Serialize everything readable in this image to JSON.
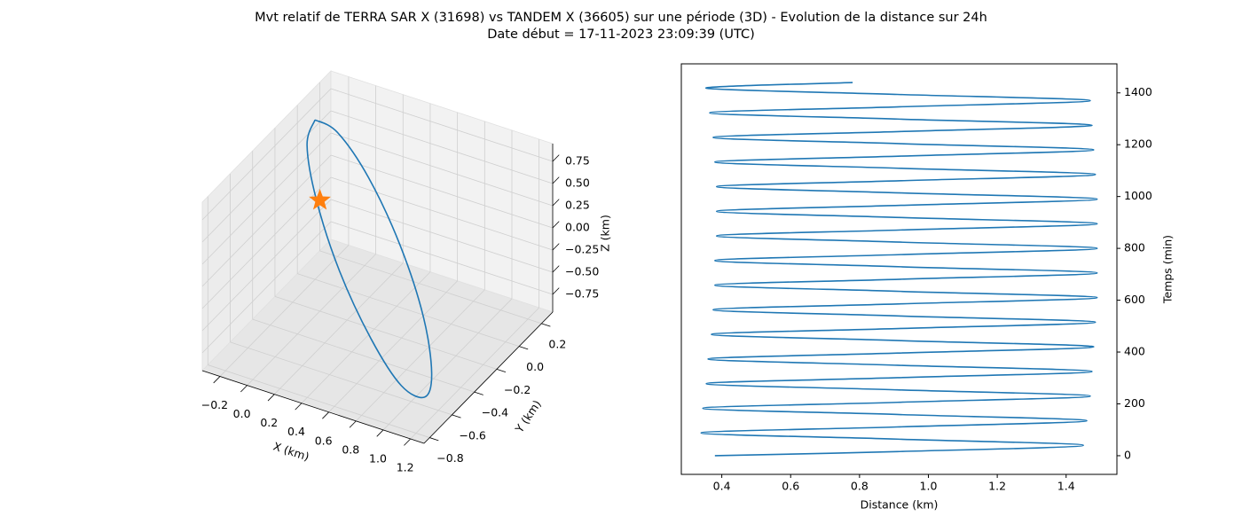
{
  "title": "Mvt relatif de TERRA SAR X (31698) vs TANDEM X (36605) sur une période (3D) - Evolution de la distance sur 24h",
  "subtitle": "Date début = 17-11-2023 23:09:39 (UTC)",
  "chart_data": [
    {
      "type": "line3d",
      "xlabel": "X (km)",
      "ylabel": "Y (km)",
      "zlabel": "Z (km)",
      "xlim": [
        -0.33,
        1.3
      ],
      "ylim": [
        -0.85,
        0.3
      ],
      "zlim": [
        -0.95,
        0.95
      ],
      "grid": true,
      "xticks": [
        {
          "value": -0.2,
          "label": "−0.2"
        },
        {
          "value": 0,
          "label": "0.0"
        },
        0.2,
        0.4,
        0.6,
        0.8,
        {
          "value": 1,
          "label": "1.0"
        },
        1.2
      ],
      "yticks": [
        {
          "value": -0.8,
          "label": "−0.8"
        },
        {
          "value": -0.6,
          "label": "−0.6"
        },
        {
          "value": -0.4,
          "label": "−0.4"
        },
        {
          "value": -0.2,
          "label": "−0.2"
        },
        {
          "value": 0,
          "label": "0.0"
        },
        0.2
      ],
      "zticks": [
        {
          "value": -0.75,
          "label": "−0.75"
        },
        {
          "value": -0.5,
          "label": "−0.50"
        },
        {
          "value": -0.25,
          "label": "−0.25"
        },
        {
          "value": 0,
          "label": "0.00"
        },
        0.25,
        {
          "value": 0.5,
          "label": "0.50"
        },
        0.75
      ],
      "series": [
        {
          "type": "line",
          "color": "#1f77b4",
          "x": [
            -0.2,
            -0.06,
            0.21,
            0.55,
            0.86,
            1.06,
            1.1,
            0.96,
            0.69,
            0.35,
            0.04,
            -0.16,
            -0.2
          ],
          "y": [
            0,
            0.03,
            -0.02,
            -0.15,
            -0.32,
            -0.49,
            -0.6,
            -0.64,
            -0.58,
            -0.45,
            -0.28,
            -0.12,
            0
          ],
          "z": [
            0.85,
            0.74,
            0.43,
            0,
            -0.43,
            -0.74,
            -0.85,
            -0.74,
            -0.43,
            0,
            0.43,
            0.74,
            0.85
          ]
        },
        {
          "type": "scatter",
          "marker": "star",
          "color": "#ff7f0e",
          "x": [
            0
          ],
          "y": [
            -0.2
          ],
          "z": [
            0.3
          ]
        }
      ]
    },
    {
      "type": "line",
      "orientation": "vertical",
      "xlabel": "Distance (km)",
      "ylabel": "Temps (min)",
      "yaxis_side": "right",
      "xlim": [
        0.2825,
        1.5475
      ],
      "ylim": [
        -72,
        1512
      ],
      "xticks": [
        0.4,
        0.6,
        0.8,
        {
          "value": 1,
          "label": "1.0"
        },
        1.2,
        1.4
      ],
      "yticks": [
        0,
        200,
        400,
        600,
        800,
        1000,
        1200,
        1400
      ],
      "y": [
        0,
        16,
        40,
        64,
        88,
        111,
        135,
        159,
        183,
        206,
        230,
        254,
        278,
        301,
        325,
        349,
        373,
        396,
        420,
        444,
        468,
        491,
        515,
        539,
        563,
        586,
        610,
        634,
        658,
        681,
        705,
        729,
        753,
        776,
        800,
        824,
        848,
        871,
        895,
        919,
        943,
        966,
        990,
        1014,
        1038,
        1061,
        1085,
        1109,
        1133,
        1156,
        1180,
        1204,
        1228,
        1251,
        1275,
        1299,
        1323,
        1346,
        1370,
        1394,
        1418,
        1440
      ],
      "series": [
        {
          "color": "#1f77b4",
          "values": [
            0.38,
            0.91,
            1.45,
            0.91,
            0.34,
            0.91,
            1.46,
            0.91,
            0.345,
            0.91,
            1.47,
            0.91,
            0.355,
            0.91,
            1.475,
            0.91,
            0.36,
            0.91,
            1.48,
            0.92,
            0.37,
            0.92,
            1.485,
            0.92,
            0.375,
            0.92,
            1.49,
            0.92,
            0.38,
            0.92,
            1.49,
            0.92,
            0.38,
            0.92,
            1.49,
            0.92,
            0.385,
            0.92,
            1.49,
            0.92,
            0.385,
            0.92,
            1.49,
            0.92,
            0.385,
            0.92,
            1.485,
            0.92,
            0.38,
            0.92,
            1.48,
            0.92,
            0.375,
            0.92,
            1.475,
            0.91,
            0.365,
            0.91,
            1.47,
            0.91,
            0.355,
            0.78
          ]
        }
      ]
    }
  ]
}
